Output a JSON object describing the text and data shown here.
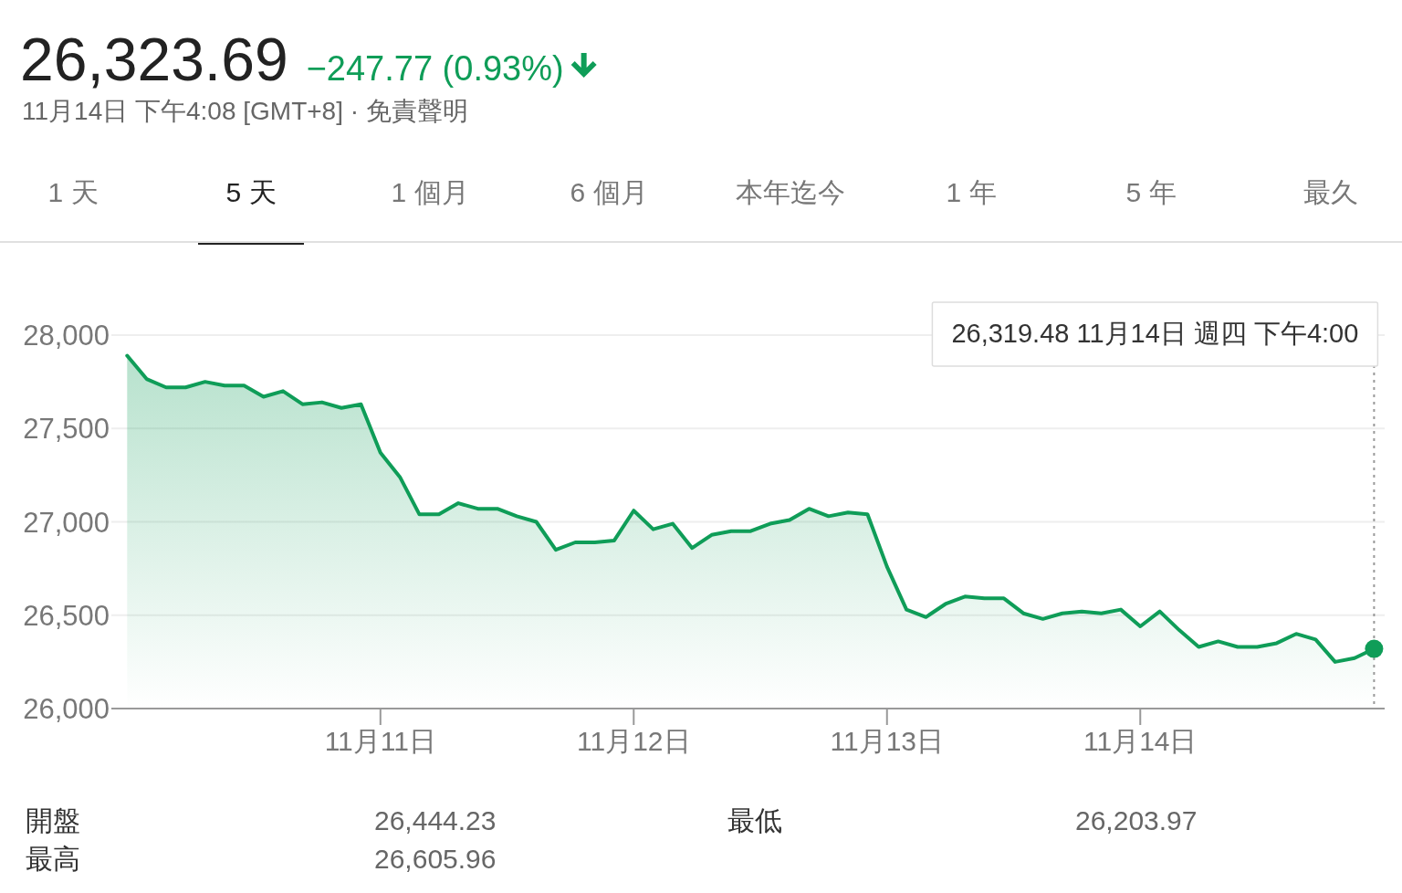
{
  "chart_data": {
    "type": "area",
    "title": "26,323.69",
    "subtitle": "11月14日 下午4:08 [GMT+8] · 免責聲明",
    "categories": [
      null,
      null,
      null,
      null,
      null,
      null,
      null,
      null,
      null,
      null,
      null,
      null,
      null,
      "11月11日",
      null,
      null,
      null,
      null,
      null,
      null,
      null,
      null,
      null,
      null,
      null,
      null,
      "11月12日",
      null,
      null,
      null,
      null,
      null,
      null,
      null,
      null,
      null,
      null,
      null,
      null,
      "11月13日",
      null,
      null,
      null,
      null,
      null,
      null,
      null,
      null,
      null,
      null,
      null,
      null,
      "11月14日",
      null,
      null,
      null,
      null,
      null,
      null,
      null,
      null,
      null,
      null,
      null,
      null
    ],
    "series": [
      {
        "color": "#0f9d58",
        "values": [
          27890,
          27765,
          27720,
          27720,
          27750,
          27730,
          27730,
          27670,
          27700,
          27630,
          27640,
          27610,
          27630,
          27370,
          27240,
          27040,
          27040,
          27100,
          27070,
          27070,
          27030,
          27000,
          26850,
          26890,
          26890,
          26900,
          27060,
          26960,
          26990,
          26860,
          26930,
          26950,
          26950,
          26990,
          27010,
          27070,
          27030,
          27050,
          27040,
          26760,
          26530,
          26490,
          26560,
          26600,
          26590,
          26590,
          26510,
          26480,
          26510,
          26520,
          26510,
          26530,
          26440,
          26520,
          26420,
          26330,
          26360,
          26330,
          26330,
          26350,
          26400,
          26370,
          26250,
          26270,
          26320
        ]
      }
    ],
    "ylim": [
      26000,
      28000
    ],
    "yticks": [
      {
        "value": 26000,
        "label": "26,000"
      },
      {
        "value": 26500,
        "label": "26,500"
      },
      {
        "value": 27000,
        "label": "27,000"
      },
      {
        "value": 27500,
        "label": "27,500"
      },
      {
        "value": 28000,
        "label": "28,000"
      }
    ],
    "grid": "y",
    "annotations": [
      "−247.77 (0.93%)",
      "1 天",
      "5 天",
      "1 個月",
      "6 個月",
      "本年迄今",
      "1 年",
      "5 年",
      "最久",
      "開盤",
      "26,444.23",
      "最高",
      "26,605.96",
      "最低",
      "26,203.97",
      "26,319.48 11月14日 週四 下午4:00"
    ]
  }
}
